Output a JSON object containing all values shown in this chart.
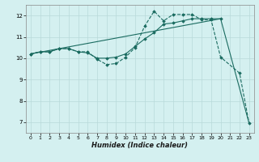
{
  "xlabel": "Humidex (Indice chaleur)",
  "bg_color": "#d4f0f0",
  "grid_color": "#b8dada",
  "line_color": "#1a6b60",
  "xlim": [
    -0.5,
    23.5
  ],
  "ylim": [
    6.5,
    12.5
  ],
  "xticks": [
    0,
    1,
    2,
    3,
    4,
    5,
    6,
    7,
    8,
    9,
    10,
    11,
    12,
    13,
    14,
    15,
    16,
    17,
    18,
    19,
    20,
    21,
    22,
    23
  ],
  "yticks": [
    7,
    8,
    9,
    10,
    11,
    12
  ],
  "series1_x": [
    0,
    1,
    2,
    3,
    4,
    5,
    6,
    7,
    8,
    9,
    10,
    11,
    12,
    13,
    14,
    15,
    16,
    17,
    18,
    19,
    20,
    22,
    23
  ],
  "series1_y": [
    10.2,
    10.3,
    10.3,
    10.45,
    10.45,
    10.3,
    10.3,
    9.95,
    9.7,
    9.75,
    10.05,
    10.5,
    11.5,
    12.2,
    11.75,
    12.05,
    12.05,
    12.05,
    11.8,
    11.8,
    10.05,
    9.3,
    6.95
  ],
  "series2_x": [
    0,
    1,
    2,
    3,
    4,
    5,
    6,
    7,
    8,
    9,
    10,
    11,
    12,
    13,
    14,
    15,
    16,
    17,
    18,
    19,
    20
  ],
  "series2_y": [
    10.2,
    10.3,
    10.3,
    10.45,
    10.45,
    10.3,
    10.25,
    10.0,
    10.0,
    10.05,
    10.2,
    10.55,
    10.9,
    11.2,
    11.6,
    11.65,
    11.75,
    11.85,
    11.85,
    11.85,
    11.85
  ],
  "series3_x": [
    0,
    20,
    23
  ],
  "series3_y": [
    10.2,
    11.85,
    6.95
  ]
}
